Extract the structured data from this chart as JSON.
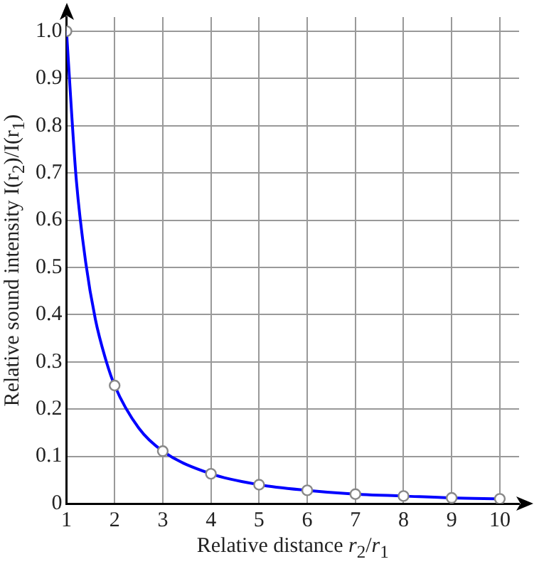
{
  "chart_data": {
    "type": "line",
    "xlabel": "Relative distance r$_{2}$/r$_{1}$",
    "ylabel": "Relative sound intensity I(r$_{2}$)/I(r$_{1}$)",
    "xlim": [
      1,
      10.4
    ],
    "ylim": [
      0,
      1.03
    ],
    "xticks": [
      1,
      2,
      3,
      4,
      5,
      6,
      7,
      8,
      9,
      10
    ],
    "yticks": [
      0,
      0.1,
      0.2,
      0.3,
      0.4,
      0.5,
      0.6,
      0.7,
      0.8,
      0.9,
      {
        "value": 1,
        "label": "1.0"
      }
    ],
    "grid": true,
    "series": [
      {
        "color": "#0000ff",
        "x": [
          1,
          1.2,
          1.4,
          1.6,
          1.8,
          2,
          2.5,
          3,
          4,
          5,
          6,
          7,
          8,
          9,
          10
        ],
        "values": [
          1,
          0.69,
          0.51,
          0.39,
          0.31,
          0.25,
          0.16,
          0.111,
          0.063,
          0.04,
          0.028,
          0.02,
          0.016,
          0.012,
          0.01
        ],
        "marker": "none"
      },
      {
        "type": "scatter",
        "color": "#888888",
        "x": [
          1,
          2,
          3,
          4,
          5,
          6,
          7,
          8,
          9,
          10
        ],
        "values": [
          1,
          0.25,
          0.111,
          0.063,
          0.04,
          0.028,
          0.02,
          0.016,
          0.012,
          0.01
        ],
        "marker": "circle"
      }
    ]
  }
}
